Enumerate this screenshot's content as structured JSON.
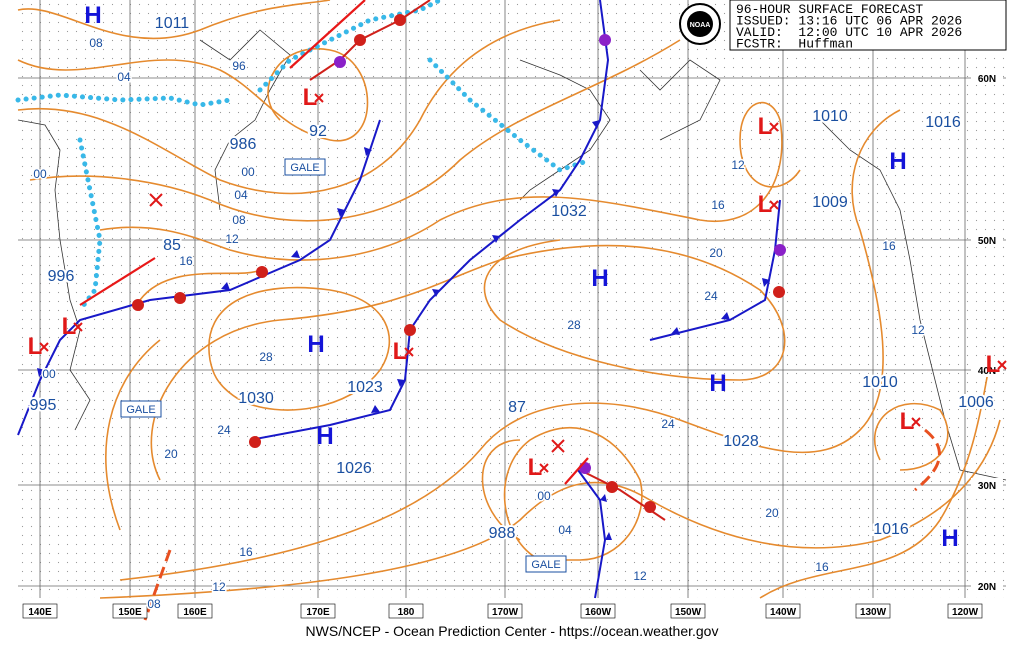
{
  "header": {
    "lines": [
      "96-HOUR SURFACE FORECAST",
      "ISSUED: 13:16 UTC 06 APR 2026",
      "VALID:  12:00 UTC 10 APR 2026",
      "FCSTR:  Huffman"
    ],
    "logo": "NOAA"
  },
  "latitude_labels": [
    "60N",
    "50N",
    "40N",
    "30N",
    "20N"
  ],
  "longitude_labels": [
    "140E",
    "150E",
    "160E",
    "170E",
    "180",
    "170W",
    "160W",
    "150W",
    "140W",
    "130W",
    "120W"
  ],
  "highs": [
    "H",
    "H",
    "H",
    "H",
    "H",
    "H",
    "H"
  ],
  "lows": [
    "L",
    "L",
    "L",
    "L",
    "L",
    "L",
    "L",
    "L",
    "L"
  ],
  "pressure_labels": [
    "1011",
    "986",
    "92",
    "85",
    "996",
    "995",
    "1030",
    "1023",
    "1026",
    "1032",
    "87",
    "988",
    "1010",
    "1009",
    "1016",
    "1010",
    "1006",
    "1028",
    "1016"
  ],
  "isobar_labels": [
    "08",
    "04",
    "96",
    "00",
    "00",
    "04",
    "08",
    "12",
    "16",
    "28",
    "24",
    "20",
    "16",
    "12",
    "08",
    "00",
    "12",
    "16",
    "20",
    "24",
    "28",
    "24",
    "20",
    "16",
    "16",
    "12",
    "00",
    "04",
    "12"
  ],
  "warnings": [
    "GALE",
    "GALE",
    "GALE"
  ],
  "footer": "NWS/NCEP - Ocean Prediction Center - https://ocean.weather.gov"
}
